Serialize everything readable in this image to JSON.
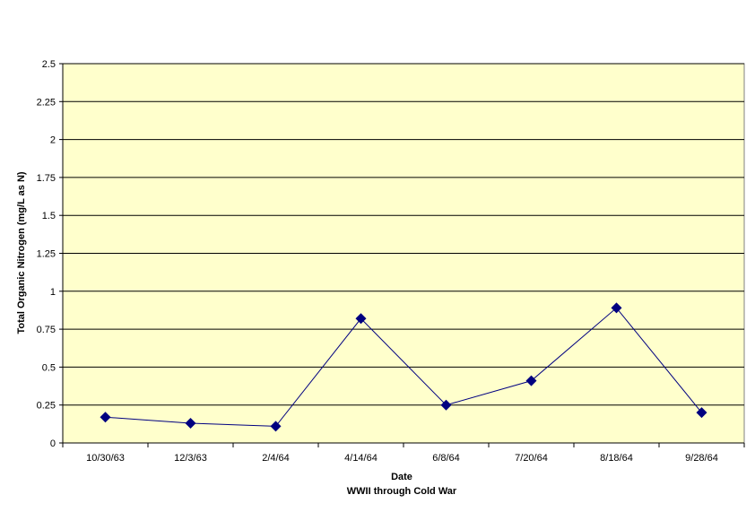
{
  "chart_data": {
    "type": "line",
    "title": "",
    "xlabel": "Date",
    "xlabel_sub": "WWII through Cold War",
    "ylabel": "Total Organic Nitrogen (mg/L as N)",
    "ylim": [
      0,
      2.5
    ],
    "yticks": [
      "0",
      "0.25",
      "0.5",
      "0.75",
      "1",
      "1.25",
      "1.5",
      "1.75",
      "2",
      "2.25",
      "2.5"
    ],
    "ytick_values": [
      0,
      0.25,
      0.5,
      0.75,
      1,
      1.25,
      1.5,
      1.75,
      2,
      2.25,
      2.5
    ],
    "categories": [
      "10/30/63",
      "12/3/63",
      "2/4/64",
      "4/14/64",
      "6/8/64",
      "7/20/64",
      "8/18/64",
      "9/28/64"
    ],
    "series": [
      {
        "values": [
          0.17,
          0.13,
          0.11,
          0.82,
          0.25,
          0.41,
          0.89,
          0.2
        ]
      }
    ],
    "grid": true,
    "legend": "none",
    "colors": {
      "plot_background": "#ffffcc",
      "gridline": "#000000",
      "line": "#000080",
      "marker": "#000080"
    }
  }
}
